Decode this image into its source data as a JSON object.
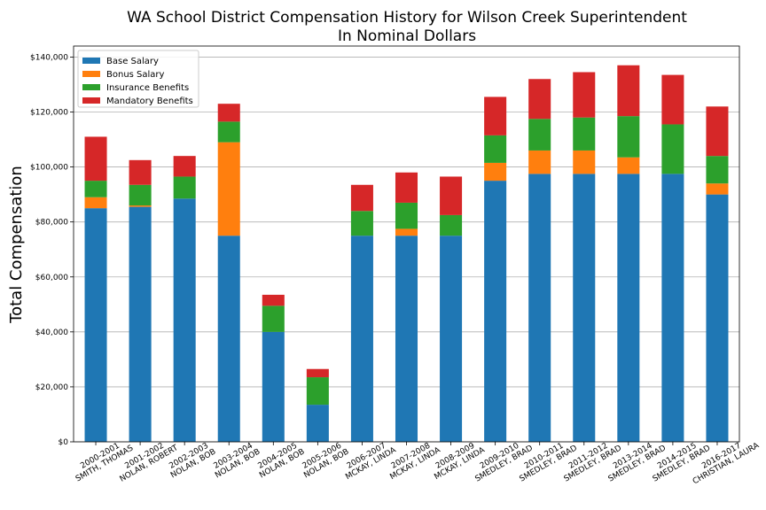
{
  "chart_data": {
    "type": "bar",
    "stacked": true,
    "title": "WA School District Compensation History for Wilson Creek Superintendent",
    "subtitle": "In Nominal Dollars",
    "xlabel": "",
    "ylabel": "Total Compensation",
    "ylim": [
      0,
      144000
    ],
    "yticks": [
      0,
      20000,
      40000,
      60000,
      80000,
      100000,
      120000,
      140000
    ],
    "ytick_labels": [
      "$0",
      "$20,000",
      "$40,000",
      "$60,000",
      "$80,000",
      "$100,000",
      "$120,000",
      "$140,000"
    ],
    "grid": true,
    "legend_position": "top-left",
    "categories": [
      [
        "2000-2001",
        "SMITH, THOMAS"
      ],
      [
        "2001-2002",
        "NOLAN, ROBERT"
      ],
      [
        "2002-2003",
        "NOLAN, BOB"
      ],
      [
        "2003-2004",
        "NOLAN, BOB"
      ],
      [
        "2004-2005",
        "NOLAN, BOB"
      ],
      [
        "2005-2006",
        "NOLAN, BOB"
      ],
      [
        "2006-2007",
        "MCKAY, LINDA"
      ],
      [
        "2007-2008",
        "MCKAY, LINDA"
      ],
      [
        "2008-2009",
        "MCKAY, LINDA"
      ],
      [
        "2009-2010",
        "SMEDLEY, BRAD"
      ],
      [
        "2010-2011",
        "SMEDLEY, BRAD"
      ],
      [
        "2011-2012",
        "SMEDLEY, BRAD"
      ],
      [
        "2013-2014",
        "SMEDLEY, BRAD"
      ],
      [
        "2014-2015",
        "SMEDLEY, BRAD"
      ],
      [
        "2016-2017",
        "CHRISTIAN, LAURA"
      ]
    ],
    "series": [
      {
        "name": "Base Salary",
        "color": "#1f77b4",
        "values": [
          85000,
          85500,
          88500,
          75000,
          40000,
          13500,
          75000,
          75000,
          75000,
          95000,
          97500,
          97500,
          97500,
          97500,
          90000
        ]
      },
      {
        "name": "Bonus Salary",
        "color": "#ff7f0e",
        "values": [
          4000,
          500,
          0,
          34000,
          0,
          0,
          0,
          2500,
          0,
          6500,
          8500,
          8500,
          6000,
          0,
          4000
        ]
      },
      {
        "name": "Insurance Benefits",
        "color": "#2ca02c",
        "values": [
          6000,
          7500,
          8000,
          7500,
          9500,
          10000,
          9000,
          9500,
          7500,
          10000,
          11500,
          12000,
          15000,
          18000,
          10000
        ]
      },
      {
        "name": "Mandatory Benefits",
        "color": "#d62728",
        "values": [
          16000,
          9000,
          7500,
          6500,
          4000,
          3000,
          9500,
          11000,
          14000,
          14000,
          14500,
          16500,
          18500,
          18000,
          18000
        ]
      }
    ]
  }
}
